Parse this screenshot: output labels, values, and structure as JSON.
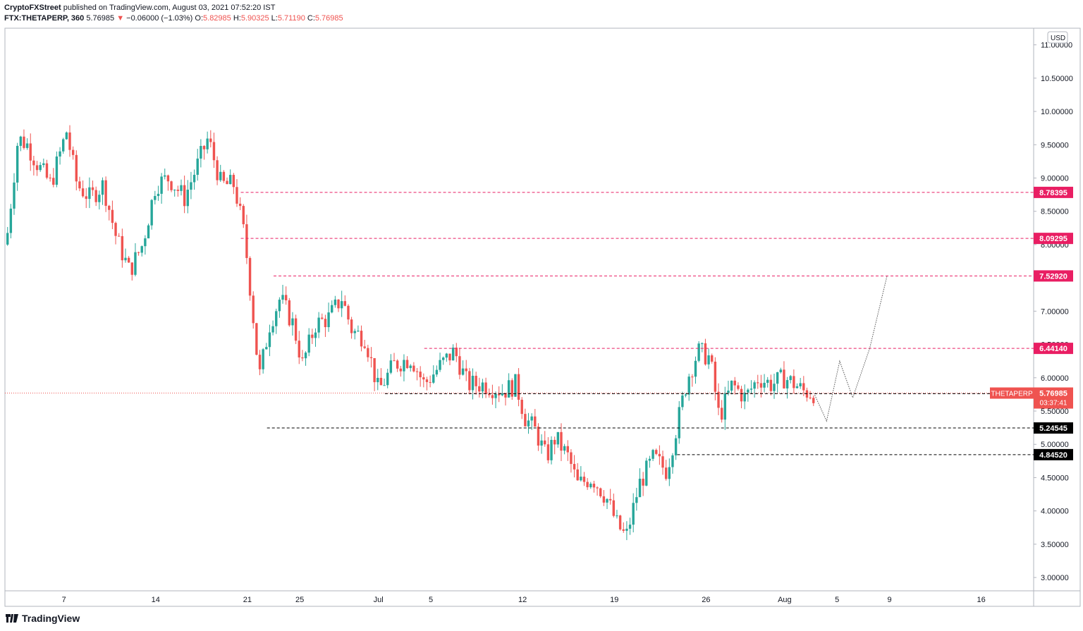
{
  "header": {
    "author": "CryptoFXStreet",
    "published_text": "published on TradingView.com, August 03, 2021 07:52:20 IST",
    "symbol": "FTX:THETAPERP, 360",
    "last": "5.76985",
    "change": "−0.06000 (−1.03%)",
    "o_label": "O:",
    "o": "5.82985",
    "h_label": "H:",
    "h": "5.90325",
    "l_label": "L:",
    "l": "5.71190",
    "c_label": "C:",
    "c": "5.76985"
  },
  "footer": {
    "brand": "TradingView"
  },
  "colors": {
    "up": "#26a69a",
    "down": "#ef5350",
    "level": "#e91e63",
    "support": "#000000",
    "grid": "#f0f3fa",
    "axis": "#131722"
  },
  "chart_data": {
    "type": "candlestick",
    "currency_label": "USD",
    "y_range": [
      2.8,
      11.25
    ],
    "y_ticks": [
      "3.00000",
      "3.50000",
      "4.00000",
      "4.50000",
      "5.00000",
      "5.50000",
      "6.00000",
      "6.50000",
      "7.00000",
      "7.50000",
      "8.00000",
      "8.50000",
      "9.00000",
      "9.50000",
      "10.00000",
      "10.50000",
      "11.00000"
    ],
    "y_tick_values": [
      3.0,
      3.5,
      4.0,
      4.5,
      5.0,
      5.5,
      6.0,
      6.5,
      7.0,
      7.5,
      8.0,
      8.5,
      9.0,
      9.5,
      10.0,
      10.5,
      11.0
    ],
    "x_ticks": [
      {
        "label": "7",
        "t": 7
      },
      {
        "label": "14",
        "t": 14
      },
      {
        "label": "21",
        "t": 21
      },
      {
        "label": "25",
        "t": 25
      },
      {
        "label": "Jul",
        "t": 31
      },
      {
        "label": "5",
        "t": 35
      },
      {
        "label": "12",
        "t": 42
      },
      {
        "label": "19",
        "t": 49
      },
      {
        "label": "26",
        "t": 56
      },
      {
        "label": "Aug",
        "t": 62
      },
      {
        "label": "5",
        "t": 66
      },
      {
        "label": "9",
        "t": 70
      },
      {
        "label": "16",
        "t": 77
      }
    ],
    "x_range": [
      2.5,
      81
    ],
    "resistance_levels": [
      {
        "value": 8.78395,
        "label": "8.78395",
        "t_start": 20.5
      },
      {
        "value": 8.09295,
        "label": "8.09295",
        "t_start": 20.5
      },
      {
        "value": 7.5292,
        "label": "7.52920",
        "t_start": 23
      },
      {
        "value": 6.4414,
        "label": "6.44140",
        "t_start": 34.5
      }
    ],
    "support_levels": [
      {
        "value": 5.7613,
        "label": "5.76130",
        "t_start": 31.5
      },
      {
        "value": 5.24545,
        "label": "5.24545",
        "t_start": 22.5
      },
      {
        "value": 4.8452,
        "label": "4.84520",
        "t_start": 53.8
      }
    ],
    "current_price": {
      "value": 5.76985,
      "label": "5.76985",
      "symbol": "THETAPERP",
      "countdown": "03:37:41"
    },
    "projection": [
      [
        64.3,
        5.74
      ],
      [
        65.2,
        5.35
      ],
      [
        66.2,
        6.25
      ],
      [
        67.2,
        5.7
      ],
      [
        68.5,
        6.45
      ],
      [
        69.8,
        7.52
      ]
    ],
    "swing_points": [
      [
        2.6,
        8.0
      ],
      [
        3.5,
        9.6
      ],
      [
        4.2,
        9.5
      ],
      [
        5.0,
        9.2
      ],
      [
        6.0,
        8.9
      ],
      [
        7.2,
        9.7
      ],
      [
        8.0,
        8.9
      ],
      [
        9.0,
        8.7
      ],
      [
        10.0,
        8.9
      ],
      [
        11.0,
        8.1
      ],
      [
        12.0,
        7.6
      ],
      [
        13.0,
        8.0
      ],
      [
        14.0,
        8.9
      ],
      [
        15.0,
        9.0
      ],
      [
        16.2,
        8.7
      ],
      [
        17.0,
        9.1
      ],
      [
        18.0,
        9.6
      ],
      [
        19.0,
        8.9
      ],
      [
        20.0,
        8.9
      ],
      [
        20.8,
        8.1
      ],
      [
        21.4,
        7.0
      ],
      [
        21.9,
        6.0
      ],
      [
        22.7,
        6.8
      ],
      [
        23.5,
        7.2
      ],
      [
        24.5,
        6.8
      ],
      [
        25.2,
        6.2
      ],
      [
        26.2,
        6.8
      ],
      [
        27.2,
        6.9
      ],
      [
        28.2,
        7.2
      ],
      [
        29.0,
        6.7
      ],
      [
        30.0,
        6.6
      ],
      [
        31.0,
        5.8
      ],
      [
        32.2,
        6.2
      ],
      [
        33.5,
        6.3
      ],
      [
        34.5,
        5.9
      ],
      [
        35.8,
        6.2
      ],
      [
        36.8,
        6.4
      ],
      [
        37.8,
        5.9
      ],
      [
        39.0,
        5.9
      ],
      [
        40.5,
        5.8
      ],
      [
        41.5,
        5.9
      ],
      [
        42.2,
        5.4
      ],
      [
        43.0,
        5.2
      ],
      [
        43.8,
        4.8
      ],
      [
        44.5,
        5.1
      ],
      [
        45.5,
        4.8
      ],
      [
        46.2,
        4.4
      ],
      [
        47.3,
        4.5
      ],
      [
        48.4,
        4.2
      ],
      [
        49.2,
        3.8
      ],
      [
        49.9,
        3.6
      ],
      [
        50.9,
        4.4
      ],
      [
        52.0,
        4.8
      ],
      [
        53.0,
        4.6
      ],
      [
        53.8,
        5.3
      ],
      [
        54.6,
        6.0
      ],
      [
        55.4,
        6.4
      ],
      [
        56.3,
        6.3
      ],
      [
        57.0,
        5.4
      ],
      [
        58.0,
        5.9
      ],
      [
        59.0,
        5.7
      ],
      [
        60.0,
        6.0
      ],
      [
        61.0,
        5.9
      ],
      [
        62.0,
        6.0
      ],
      [
        62.8,
        5.9
      ],
      [
        63.4,
        5.8
      ],
      [
        64.1,
        5.77
      ]
    ]
  }
}
